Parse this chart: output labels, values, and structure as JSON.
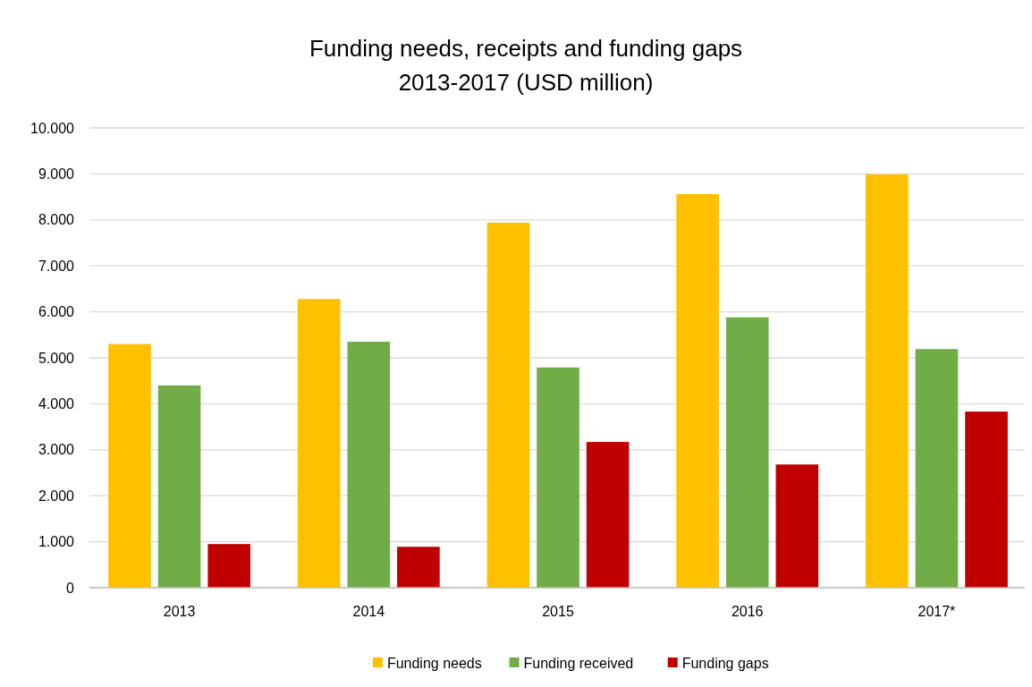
{
  "chart_data": {
    "type": "bar",
    "title": "Funding needs, receipts and funding gaps\n2013-2017 (USD million)",
    "categories": [
      "2013",
      "2014",
      "2015",
      "2016",
      "2017*"
    ],
    "series": [
      {
        "name": "Funding needs",
        "color": "#ffc000",
        "values": [
          5300,
          6280,
          7940,
          8560,
          8990
        ]
      },
      {
        "name": "Funding received",
        "color": "#70ad47",
        "values": [
          4400,
          5350,
          4790,
          5880,
          5190
        ]
      },
      {
        "name": "Funding gaps",
        "color": "#c00000",
        "values": [
          950,
          890,
          3170,
          2680,
          3830
        ]
      }
    ],
    "ylim": [
      0,
      10000
    ],
    "yticks": [
      0,
      {
        "value": 1000,
        "label": "1.000"
      },
      {
        "value": 2000,
        "label": "2.000"
      },
      {
        "value": 3000,
        "label": "3.000"
      },
      {
        "value": 4000,
        "label": "4.000"
      },
      {
        "value": 5000,
        "label": "5.000"
      },
      {
        "value": 6000,
        "label": "6.000"
      },
      {
        "value": 7000,
        "label": "7.000"
      },
      {
        "value": 8000,
        "label": "8.000"
      },
      {
        "value": 9000,
        "label": "9.000"
      },
      {
        "value": 10000,
        "label": "10.000"
      }
    ],
    "grid": "y",
    "legend": "bottom"
  }
}
